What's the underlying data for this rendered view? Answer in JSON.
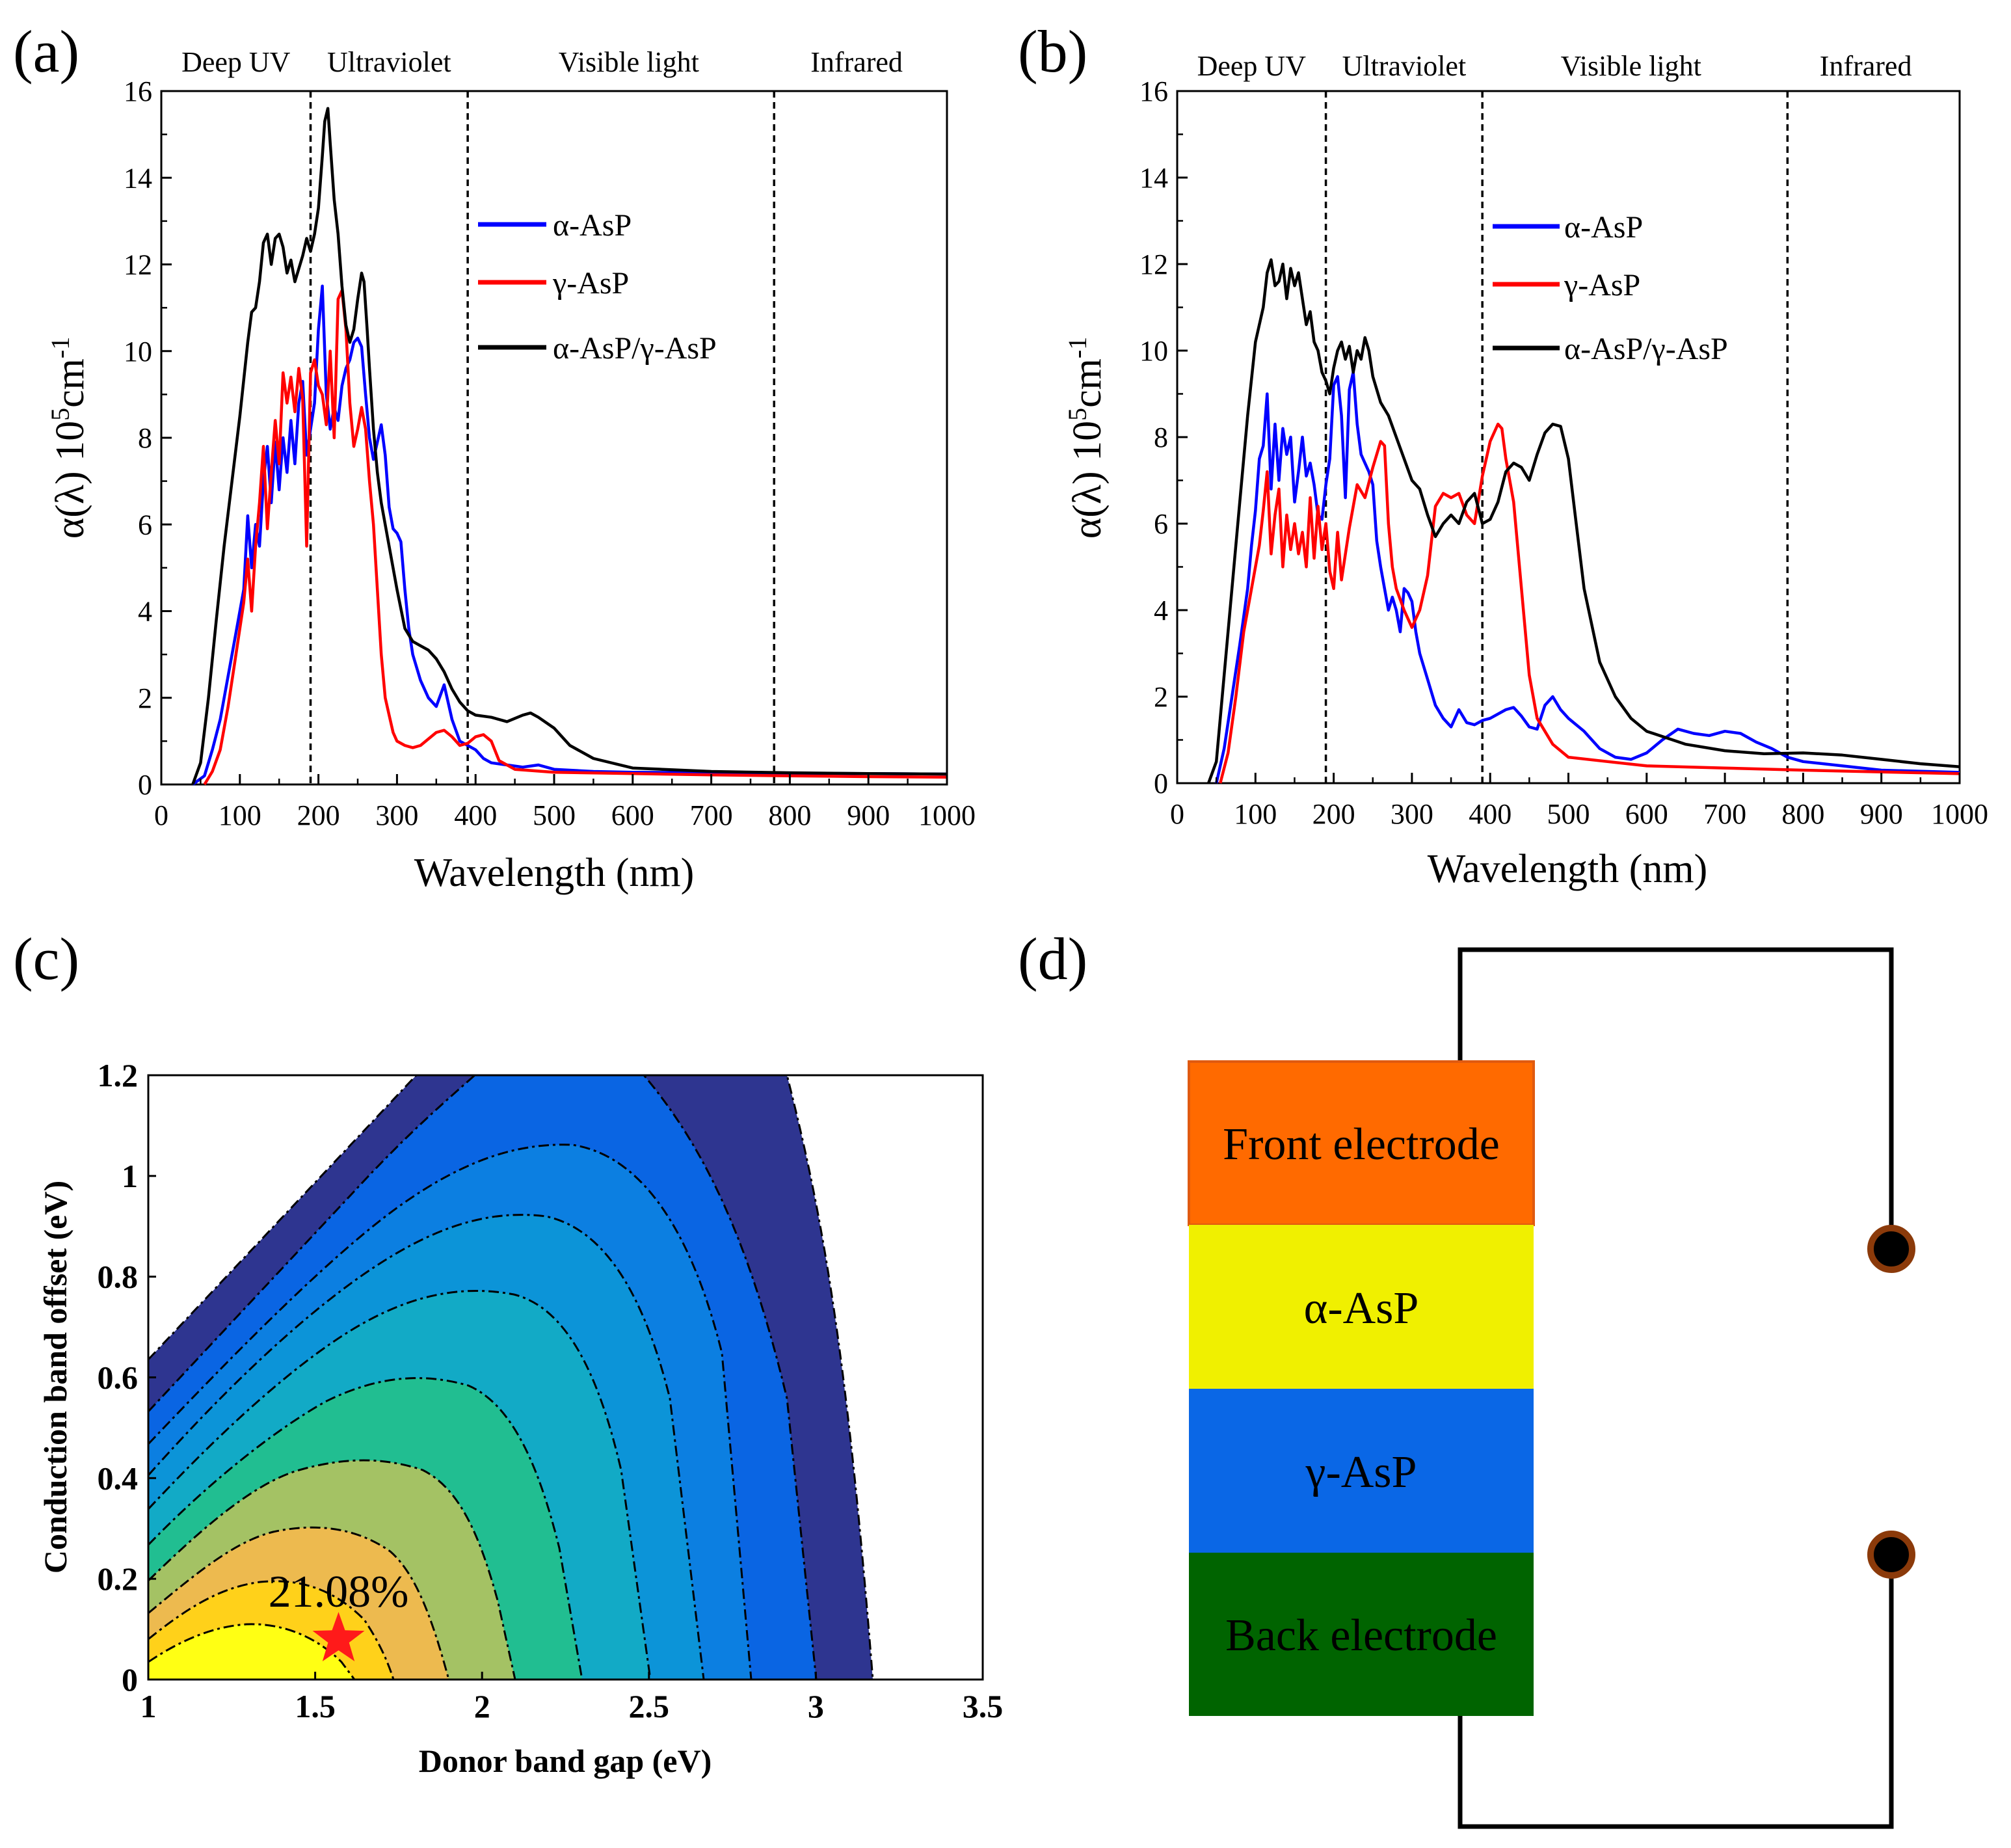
{
  "panel_labels": [
    "(a)",
    "(b)",
    "(c)",
    "(d)"
  ],
  "colors": {
    "alpha": "#0000ff",
    "gamma": "#ff0000",
    "hetero": "#000000"
  },
  "chart_data": [
    {
      "type": "line",
      "panel": "(a)",
      "xlabel": "Wavelength (nm)",
      "ylabel_main": "α(λ) 10",
      "ylabel_sup": "5",
      "ylabel_unit": "cm",
      "ylabel_unit_sup": "-1",
      "xlim": [
        0,
        1000
      ],
      "ylim": [
        0,
        16
      ],
      "xticks": [
        "0",
        "100",
        "200",
        "300",
        "400",
        "500",
        "600",
        "700",
        "800",
        "900",
        "1000"
      ],
      "yticks": [
        "0",
        "2",
        "4",
        "6",
        "8",
        "10",
        "12",
        "14",
        "16"
      ],
      "regions": [
        {
          "label": "Deep UV",
          "center": 95
        },
        {
          "label": "Ultraviolet",
          "center": 290
        },
        {
          "label": "Visible light",
          "center": 595
        },
        {
          "label": "Infrared",
          "center": 885
        }
      ],
      "boundaries": [
        190,
        390,
        780
      ],
      "series": [
        {
          "name": "α-AsP",
          "color": "#0000ff",
          "x": [
            40,
            55,
            65,
            75,
            85,
            95,
            105,
            110,
            115,
            120,
            125,
            130,
            135,
            140,
            145,
            150,
            155,
            160,
            165,
            170,
            175,
            180,
            185,
            190,
            195,
            200,
            205,
            210,
            215,
            220,
            225,
            230,
            235,
            240,
            245,
            250,
            255,
            260,
            265,
            270,
            275,
            280,
            285,
            290,
            295,
            300,
            305,
            310,
            315,
            320,
            330,
            340,
            350,
            360,
            370,
            380,
            390,
            400,
            410,
            420,
            440,
            460,
            480,
            500,
            550,
            600,
            700,
            800,
            900,
            1000
          ],
          "y": [
            0,
            0.2,
            0.8,
            1.5,
            2.5,
            3.5,
            4.5,
            6.2,
            5.0,
            6.0,
            5.5,
            7.0,
            7.8,
            6.5,
            7.9,
            6.8,
            8.0,
            7.2,
            8.4,
            7.4,
            8.8,
            9.3,
            7.6,
            8.2,
            8.8,
            10.5,
            11.5,
            9.0,
            8.2,
            8.7,
            8.4,
            9.2,
            9.6,
            9.8,
            10.2,
            10.3,
            10.1,
            9.0,
            8.0,
            7.5,
            7.9,
            8.3,
            7.6,
            6.4,
            5.9,
            5.8,
            5.6,
            4.5,
            3.6,
            3.0,
            2.4,
            2.0,
            1.8,
            2.3,
            1.5,
            1.0,
            0.9,
            0.8,
            0.6,
            0.5,
            0.45,
            0.4,
            0.45,
            0.35,
            0.3,
            0.28,
            0.27,
            0.26,
            0.25,
            0.24
          ]
        },
        {
          "name": "γ-AsP",
          "color": "#ff0000",
          "x": [
            55,
            65,
            75,
            85,
            95,
            105,
            110,
            115,
            120,
            125,
            130,
            135,
            140,
            145,
            150,
            155,
            160,
            165,
            170,
            175,
            180,
            185,
            190,
            195,
            200,
            205,
            210,
            215,
            220,
            225,
            230,
            235,
            240,
            245,
            250,
            255,
            260,
            265,
            270,
            275,
            280,
            285,
            290,
            295,
            300,
            310,
            320,
            330,
            340,
            350,
            360,
            370,
            380,
            390,
            400,
            410,
            420,
            430,
            450,
            500,
            600,
            700,
            800,
            900,
            1000
          ],
          "y": [
            0,
            0.3,
            0.8,
            1.8,
            3.0,
            4.2,
            5.2,
            4.0,
            5.5,
            6.5,
            7.8,
            5.9,
            7.2,
            8.4,
            7.4,
            9.5,
            8.8,
            9.4,
            8.6,
            9.6,
            8.9,
            5.5,
            9.5,
            9.8,
            9.2,
            9.0,
            8.3,
            10.0,
            8.0,
            11.2,
            11.4,
            10.5,
            8.8,
            7.8,
            8.2,
            8.7,
            8.2,
            7.0,
            6.0,
            4.5,
            3.0,
            2.0,
            1.6,
            1.2,
            1.0,
            0.9,
            0.85,
            0.9,
            1.05,
            1.2,
            1.25,
            1.1,
            0.9,
            0.95,
            1.1,
            1.15,
            1.0,
            0.55,
            0.35,
            0.28,
            0.25,
            0.22,
            0.2,
            0.18,
            0.17
          ]
        },
        {
          "name": "α-AsP/γ-AsP",
          "color": "#000000",
          "x": [
            40,
            50,
            60,
            70,
            80,
            90,
            100,
            110,
            115,
            120,
            125,
            130,
            135,
            140,
            145,
            150,
            155,
            160,
            165,
            170,
            175,
            180,
            185,
            190,
            195,
            200,
            205,
            208,
            212,
            215,
            220,
            225,
            230,
            235,
            240,
            245,
            250,
            255,
            258,
            262,
            265,
            270,
            275,
            280,
            290,
            300,
            310,
            320,
            330,
            340,
            350,
            360,
            370,
            380,
            390,
            400,
            420,
            440,
            460,
            470,
            480,
            500,
            520,
            550,
            600,
            700,
            800,
            900,
            1000
          ],
          "y": [
            0,
            0.5,
            2.0,
            3.8,
            5.5,
            7.0,
            8.5,
            10.2,
            10.9,
            11.0,
            11.6,
            12.5,
            12.7,
            12.0,
            12.6,
            12.7,
            12.4,
            11.8,
            12.1,
            11.6,
            11.9,
            12.2,
            12.6,
            12.3,
            12.7,
            13.3,
            14.5,
            15.3,
            15.6,
            14.8,
            13.5,
            12.7,
            11.5,
            10.6,
            10.2,
            10.5,
            11.2,
            11.8,
            11.6,
            10.5,
            9.6,
            8.2,
            7.2,
            6.5,
            5.5,
            4.5,
            3.6,
            3.3,
            3.2,
            3.1,
            2.9,
            2.6,
            2.2,
            1.9,
            1.7,
            1.6,
            1.55,
            1.45,
            1.6,
            1.65,
            1.55,
            1.3,
            0.9,
            0.6,
            0.38,
            0.3,
            0.27,
            0.25,
            0.24
          ]
        }
      ]
    },
    {
      "type": "line",
      "panel": "(b)",
      "xlabel": "Wavelength (nm)",
      "ylabel_main": "α(λ) 10",
      "ylabel_sup": "5",
      "ylabel_unit": "cm",
      "ylabel_unit_sup": "-1",
      "xlim": [
        0,
        1000
      ],
      "ylim": [
        0,
        16
      ],
      "xticks": [
        "0",
        "100",
        "200",
        "300",
        "400",
        "500",
        "600",
        "700",
        "800",
        "900",
        "1000"
      ],
      "yticks": [
        "0",
        "2",
        "4",
        "6",
        "8",
        "10",
        "12",
        "14",
        "16"
      ],
      "regions": [
        {
          "label": "Deep UV",
          "center": 95
        },
        {
          "label": "Ultraviolet",
          "center": 290
        },
        {
          "label": "Visible light",
          "center": 580
        },
        {
          "label": "Infrared",
          "center": 880
        }
      ],
      "boundaries": [
        190,
        390,
        780
      ],
      "series": [
        {
          "name": "α-AsP",
          "color": "#0000ff",
          "x": [
            50,
            60,
            70,
            80,
            90,
            95,
            100,
            105,
            110,
            115,
            120,
            125,
            130,
            135,
            140,
            145,
            150,
            155,
            160,
            165,
            170,
            175,
            180,
            185,
            190,
            195,
            200,
            205,
            210,
            215,
            220,
            225,
            230,
            235,
            240,
            245,
            250,
            255,
            260,
            265,
            270,
            275,
            280,
            285,
            290,
            295,
            300,
            305,
            310,
            320,
            330,
            340,
            350,
            360,
            370,
            380,
            390,
            400,
            420,
            430,
            440,
            450,
            460,
            470,
            480,
            490,
            500,
            520,
            540,
            560,
            580,
            600,
            620,
            640,
            660,
            680,
            700,
            720,
            740,
            760,
            780,
            800,
            900,
            1000
          ],
          "y": [
            0,
            0.8,
            2.0,
            3.2,
            4.5,
            5.5,
            6.3,
            7.5,
            7.8,
            9.0,
            6.8,
            8.3,
            7.0,
            8.2,
            7.6,
            8.0,
            6.5,
            7.2,
            8.0,
            7.1,
            7.4,
            6.9,
            6.2,
            6.1,
            6.9,
            7.5,
            9.2,
            9.4,
            8.5,
            6.6,
            9.1,
            9.5,
            8.3,
            7.6,
            7.4,
            7.2,
            6.9,
            5.6,
            5.0,
            4.5,
            4.0,
            4.3,
            4.0,
            3.5,
            4.5,
            4.4,
            4.2,
            3.5,
            3.0,
            2.4,
            1.8,
            1.5,
            1.3,
            1.7,
            1.4,
            1.35,
            1.45,
            1.5,
            1.7,
            1.75,
            1.55,
            1.3,
            1.25,
            1.8,
            2.0,
            1.7,
            1.5,
            1.2,
            0.8,
            0.6,
            0.55,
            0.7,
            1.0,
            1.25,
            1.15,
            1.1,
            1.2,
            1.15,
            0.95,
            0.8,
            0.6,
            0.5,
            0.3,
            0.25
          ]
        },
        {
          "name": "γ-AsP",
          "color": "#ff0000",
          "x": [
            55,
            65,
            75,
            85,
            95,
            105,
            110,
            115,
            120,
            125,
            130,
            135,
            140,
            145,
            150,
            155,
            160,
            165,
            170,
            175,
            180,
            185,
            190,
            195,
            200,
            205,
            210,
            220,
            230,
            240,
            250,
            260,
            265,
            270,
            275,
            280,
            290,
            300,
            310,
            320,
            330,
            340,
            350,
            360,
            370,
            380,
            390,
            400,
            410,
            415,
            420,
            430,
            440,
            450,
            460,
            480,
            500,
            550,
            600,
            700,
            800,
            900,
            1000
          ],
          "y": [
            0,
            0.7,
            2.0,
            3.5,
            4.5,
            5.5,
            6.3,
            7.2,
            5.3,
            6.2,
            6.8,
            5.0,
            6.2,
            5.4,
            6.0,
            5.3,
            5.8,
            5.0,
            6.6,
            5.2,
            6.4,
            5.4,
            6.0,
            4.9,
            4.5,
            5.8,
            4.7,
            5.9,
            6.9,
            6.6,
            7.3,
            7.9,
            7.8,
            6.0,
            5.0,
            4.5,
            4.0,
            3.6,
            4.0,
            4.8,
            6.4,
            6.7,
            6.6,
            6.7,
            6.2,
            6.0,
            7.1,
            7.9,
            8.3,
            8.2,
            7.5,
            6.5,
            4.5,
            2.5,
            1.5,
            0.9,
            0.6,
            0.5,
            0.4,
            0.35,
            0.3,
            0.26,
            0.22
          ]
        },
        {
          "name": "α-AsP/γ-AsP",
          "color": "#000000",
          "x": [
            40,
            50,
            60,
            70,
            80,
            90,
            100,
            110,
            115,
            120,
            125,
            130,
            135,
            140,
            145,
            150,
            155,
            160,
            165,
            170,
            175,
            180,
            185,
            190,
            195,
            200,
            205,
            210,
            215,
            220,
            225,
            230,
            235,
            240,
            245,
            250,
            260,
            270,
            280,
            290,
            300,
            310,
            320,
            330,
            340,
            350,
            360,
            370,
            380,
            390,
            400,
            410,
            420,
            430,
            440,
            450,
            460,
            470,
            480,
            490,
            500,
            510,
            520,
            540,
            560,
            580,
            600,
            650,
            700,
            750,
            800,
            850,
            900,
            950,
            1000
          ],
          "y": [
            0,
            0.5,
            2.5,
            4.5,
            6.5,
            8.5,
            10.2,
            11.0,
            11.8,
            12.1,
            11.5,
            11.6,
            12.0,
            11.2,
            11.9,
            11.5,
            11.8,
            11.2,
            10.6,
            10.9,
            10.2,
            10.0,
            9.5,
            9.3,
            9.0,
            9.6,
            10.0,
            10.2,
            9.8,
            10.1,
            9.5,
            10.0,
            9.8,
            10.3,
            10.0,
            9.4,
            8.8,
            8.5,
            8.0,
            7.5,
            7.0,
            6.8,
            6.2,
            5.7,
            6.0,
            6.2,
            6.0,
            6.5,
            6.7,
            6.0,
            6.1,
            6.5,
            7.2,
            7.4,
            7.3,
            7.0,
            7.6,
            8.1,
            8.3,
            8.25,
            7.5,
            6.0,
            4.5,
            2.8,
            2.0,
            1.5,
            1.2,
            0.9,
            0.75,
            0.68,
            0.7,
            0.65,
            0.55,
            0.45,
            0.38
          ]
        }
      ]
    },
    {
      "type": "heatmap",
      "panel": "(c)",
      "xlabel": "Donor band gap (eV)",
      "ylabel": "Conduction band offset (eV)",
      "xlim": [
        1,
        3.5
      ],
      "ylim": [
        0,
        1.2
      ],
      "xticks": [
        "1",
        "1.5",
        "2",
        "2.5",
        "3",
        "3.5"
      ],
      "yticks": [
        "0",
        "0.2",
        "0.4",
        "0.6",
        "0.8",
        "1",
        "1.2"
      ],
      "annotation": {
        "text": "21.08%",
        "x": 1.57,
        "y": 0.08
      },
      "contour_fill_colors": [
        "#ffff14",
        "#ffd11a",
        "#edba4f",
        "#a4c264",
        "#21be91",
        "#12aac6",
        "#0c94d8",
        "#0c7fe1",
        "#0a65e3",
        "#2e3590"
      ],
      "contour_levels": [
        20,
        18,
        16,
        14,
        12,
        10,
        8,
        6,
        4,
        2
      ]
    }
  ],
  "device": {
    "title": "(d)",
    "layers": [
      {
        "label": "Front electrode",
        "color": "#ff6a00"
      },
      {
        "label": "α-AsP",
        "color": "#f0f000"
      },
      {
        "label": "γ-AsP",
        "color": "#0a67e6"
      },
      {
        "label": "Back electrode",
        "color": "#006400"
      }
    ]
  }
}
